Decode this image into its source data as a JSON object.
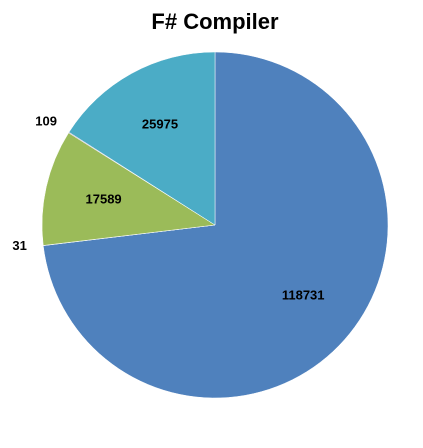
{
  "chart_data": {
    "type": "pie",
    "title": "F# Compiler",
    "legend": "none",
    "slices": [
      {
        "label": "118731",
        "value": 118731,
        "color": "#4F81BD"
      },
      {
        "label": "31",
        "value": 31,
        "color": "#C0504D"
      },
      {
        "label": "17589",
        "value": 17589,
        "color": "#9BBB59"
      },
      {
        "label": "109",
        "value": 109,
        "color": "#8064A2"
      },
      {
        "label": "25975",
        "value": 25975,
        "color": "#4BACC6"
      }
    ]
  }
}
